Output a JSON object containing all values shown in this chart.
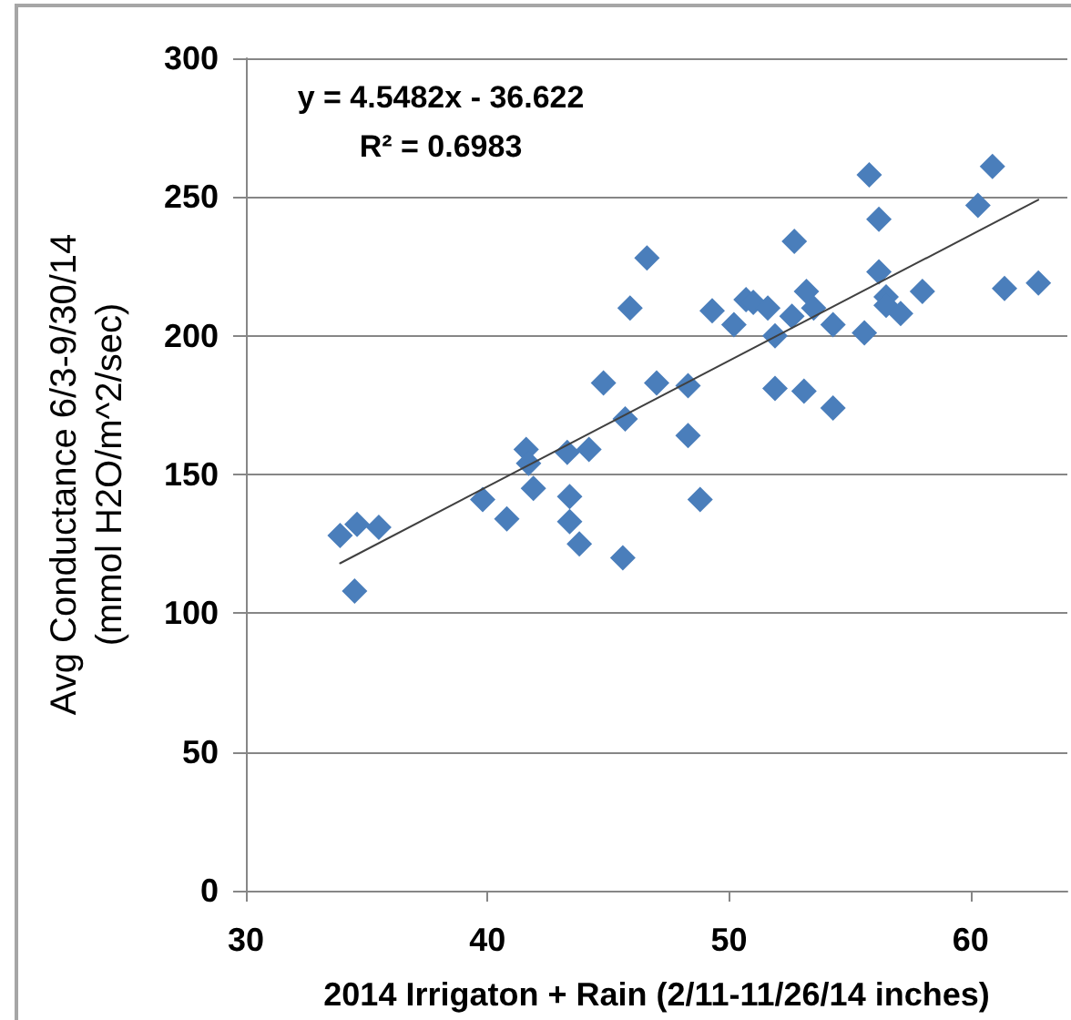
{
  "chart_data": {
    "type": "scatter",
    "xlabel": "2014 Irrigaton + Rain (2/11-11/26/14 inches)",
    "ylabel": "Avg Conductance 6/3-9/30/14 (mmol H2O/m^2/sec)",
    "annotations": [
      "y = 4.5482x - 36.622",
      "R² = 0.6983"
    ],
    "series": [
      {
        "color": "#4a7ebb",
        "x": [
          33.9,
          34.6,
          35.5,
          34.5,
          39.8,
          40.8,
          41.6,
          41.7,
          41.9,
          43.3,
          43.4,
          43.4,
          43.8,
          44.2,
          44.8,
          45.7,
          45.6,
          45.9,
          46.6,
          47.0,
          48.3,
          48.3,
          48.8,
          49.3,
          50.2,
          50.7,
          51.0,
          51.6,
          51.9,
          51.9,
          52.6,
          52.7,
          53.2,
          53.5,
          53.1,
          54.3,
          54.3,
          55.6,
          55.8,
          56.2,
          56.2,
          56.5,
          56.5,
          57.1,
          58.0,
          60.3,
          60.9,
          61.4,
          62.8
        ],
        "values": [
          128,
          132,
          131,
          108,
          141,
          134,
          159,
          154,
          145,
          158,
          142,
          133,
          125,
          159,
          183,
          170,
          120,
          210,
          228,
          183,
          182,
          164,
          141,
          209,
          204,
          213,
          212,
          210,
          200,
          181,
          207,
          234,
          216,
          210,
          180,
          204,
          174,
          201,
          258,
          242,
          223,
          214,
          211,
          208,
          216,
          247,
          261,
          217,
          219
        ]
      },
      {
        "type": "line",
        "marker": "none",
        "color": "#404040",
        "x": [
          33.9,
          62.8
        ],
        "values": [
          118,
          249
        ]
      }
    ],
    "marker": "diamond",
    "xlim": [
      30,
      64
    ],
    "xticks": [
      30,
      40,
      50,
      60
    ],
    "ylim": [
      0,
      300
    ],
    "yticks": [
      0,
      50,
      100,
      150,
      200,
      250,
      300
    ],
    "grid": "y"
  }
}
